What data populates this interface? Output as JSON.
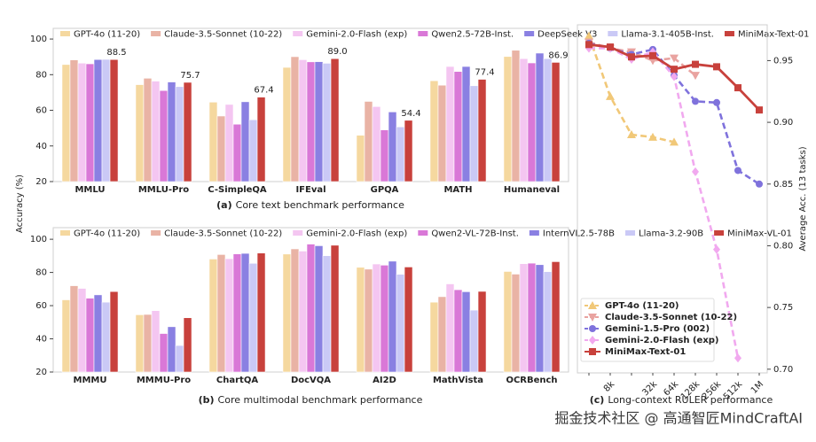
{
  "chart_data": [
    {
      "type": "bar",
      "caption_label": "(a)",
      "caption": "Core text benchmark performance",
      "categories": [
        "MMLU",
        "MMLU-Pro",
        "C-SimpleQA",
        "IFEval",
        "GPQA",
        "MATH",
        "Humaneval"
      ],
      "series": [
        {
          "name": "GPT-4o (11-20)",
          "color": "#f5d89f",
          "values": [
            85.7,
            74.4,
            64.6,
            84.1,
            46.0,
            76.6,
            90.2
          ]
        },
        {
          "name": "Claude-3.5-Sonnet (10-22)",
          "color": "#e9b3a5",
          "values": [
            88.3,
            78.0,
            56.8,
            90.1,
            65.0,
            74.1,
            93.7
          ]
        },
        {
          "name": "Gemini-2.0-Flash (exp)",
          "color": "#f4c6f1",
          "values": [
            86.5,
            76.4,
            63.3,
            88.4,
            62.1,
            84.6,
            89.0
          ]
        },
        {
          "name": "Qwen2.5-72B-Inst.",
          "color": "#d978d7",
          "values": [
            86.1,
            71.1,
            52.2,
            87.2,
            49.0,
            81.8,
            86.6
          ]
        },
        {
          "name": "DeepSeek V3",
          "color": "#8a80e2",
          "values": [
            88.5,
            75.9,
            64.8,
            87.3,
            59.1,
            84.6,
            92.1
          ]
        },
        {
          "name": "Llama-3.1-405B-Inst.",
          "color": "#cac9f6",
          "values": [
            88.6,
            73.3,
            54.7,
            86.4,
            50.7,
            73.8,
            89.0
          ]
        },
        {
          "name": "MiniMax-Text-01",
          "color": "#c8413c",
          "values": [
            88.5,
            75.7,
            67.4,
            89.0,
            54.4,
            77.4,
            86.9
          ],
          "value_labels": [
            "88.5",
            "75.7",
            "67.4",
            "89.0",
            "54.4",
            "77.4",
            "86.9"
          ]
        }
      ],
      "ylim": [
        20,
        106
      ],
      "yticks": [
        20,
        40,
        60,
        80,
        100
      ]
    },
    {
      "type": "bar",
      "caption_label": "(b)",
      "caption": "Core multimodal benchmark performance",
      "categories": [
        "MMMU",
        "MMMU-Pro",
        "ChartQA",
        "DocVQA",
        "AI2D",
        "MathVista",
        "OCRBench"
      ],
      "series": [
        {
          "name": "GPT-4o (11-20)",
          "color": "#f5d89f",
          "values": [
            63.5,
            54.5,
            88.1,
            91.1,
            83.1,
            62.1,
            80.6
          ]
        },
        {
          "name": "Claude-3.5-Sonnet (10-22)",
          "color": "#e9b3a5",
          "values": [
            72.0,
            54.7,
            90.8,
            94.2,
            82.0,
            65.4,
            79.0
          ]
        },
        {
          "name": "Gemini-2.0-Flash (exp)",
          "color": "#f4c6f1",
          "values": [
            70.4,
            57.0,
            88.3,
            92.9,
            85.1,
            73.1,
            85.3
          ]
        },
        {
          "name": "Qwen2-VL-72B-Inst.",
          "color": "#d978d7",
          "values": [
            64.5,
            43.2,
            91.2,
            97.1,
            84.4,
            69.6,
            85.6
          ]
        },
        {
          "name": "InternVL2.5-78B",
          "color": "#8a80e2",
          "values": [
            66.5,
            47.3,
            91.5,
            96.1,
            86.8,
            68.4,
            84.7
          ]
        },
        {
          "name": "Llama-3.2-90B",
          "color": "#cac9f6",
          "values": [
            62.1,
            36.0,
            85.5,
            90.1,
            78.9,
            57.3,
            80.5
          ]
        },
        {
          "name": "MiniMax-VL-01",
          "color": "#c8413c",
          "values": [
            68.5,
            52.7,
            91.7,
            96.4,
            83.3,
            68.6,
            86.5
          ]
        }
      ],
      "ylim": [
        20,
        107
      ],
      "yticks": [
        20,
        40,
        60,
        80,
        100
      ]
    },
    {
      "type": "line",
      "caption_label": "(c)",
      "caption": "Long-context RULER performance",
      "ylabel": "Average Acc. (13 tasks)",
      "yaxis_side": "right",
      "categories": [
        null,
        "8k",
        null,
        "32k",
        "64k",
        "128k",
        "256k",
        "512k",
        "1M"
      ],
      "series": [
        {
          "name": "GPT-4o (11-20)",
          "color": "#f1c878",
          "dashed": true,
          "marker": "triangle-up",
          "values": [
            0.97,
            0.921,
            0.89,
            0.888,
            0.884,
            null,
            null,
            null,
            null
          ]
        },
        {
          "name": "Claude-3.5-Sonnet (10-22)",
          "color": "#e9a3a0",
          "dashed": true,
          "marker": "triangle-down",
          "values": [
            0.965,
            0.96,
            0.957,
            0.95,
            0.952,
            0.938,
            null,
            null,
            null
          ]
        },
        {
          "name": "Gemini-1.5-Pro (002)",
          "color": "#7f72dc",
          "dashed": true,
          "marker": "circle",
          "values": [
            0.964,
            0.96,
            0.955,
            0.959,
            0.938,
            0.917,
            0.916,
            0.861,
            0.85
          ]
        },
        {
          "name": "Gemini-2.0-Flash (exp)",
          "color": "#f1a9ef",
          "dashed": true,
          "marker": "diamond",
          "values": [
            0.96,
            0.96,
            0.951,
            0.957,
            0.937,
            0.86,
            0.797,
            0.709,
            null
          ]
        },
        {
          "name": "MiniMax-Text-01",
          "color": "#c8413c",
          "dashed": false,
          "marker": "square",
          "values": [
            0.963,
            0.961,
            0.953,
            0.954,
            0.943,
            0.947,
            0.945,
            0.928,
            0.91
          ]
        }
      ],
      "ylim": [
        0.697,
        0.979
      ],
      "yticks": [
        {
          "value": 0.7,
          "label": "0.70"
        },
        0.75,
        {
          "value": 0.8,
          "label": "0.80"
        },
        0.85,
        {
          "value": 0.9,
          "label": "0.90"
        },
        0.95
      ],
      "legend_position": "lower left"
    }
  ],
  "shared_ylabel": "Accuracy (%)",
  "watermark": "掘金技术社区 @ 高通智匠MindCraftAI"
}
